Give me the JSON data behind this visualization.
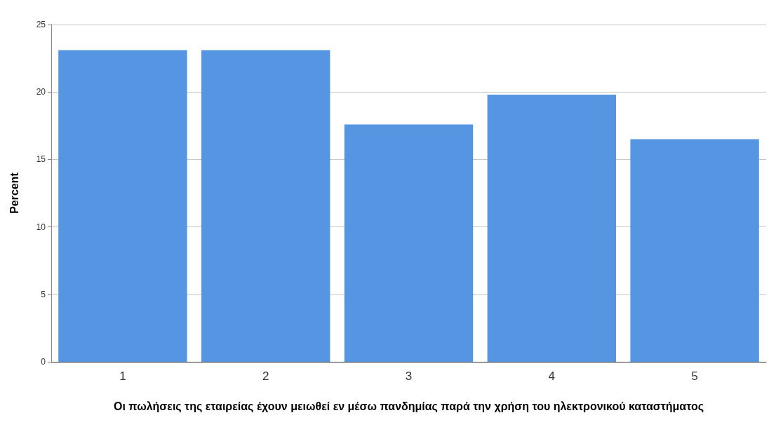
{
  "chart_data": {
    "type": "bar",
    "xlabel": "Οι πωλήσεις της εταιρείας έχουν μειωθεί εν μέσω πανδημίας παρά την χρήση του ηλεκτρονικού καταστήματος",
    "ylabel": "Percent",
    "categories": [
      "1",
      "2",
      "3",
      "4",
      "5"
    ],
    "values": [
      23.1,
      23.1,
      17.6,
      19.8,
      16.5
    ],
    "color": "#5595e2",
    "ylim": [
      0,
      25
    ],
    "yticks": [
      0,
      5,
      10,
      15,
      20,
      25
    ],
    "grid": "y"
  }
}
